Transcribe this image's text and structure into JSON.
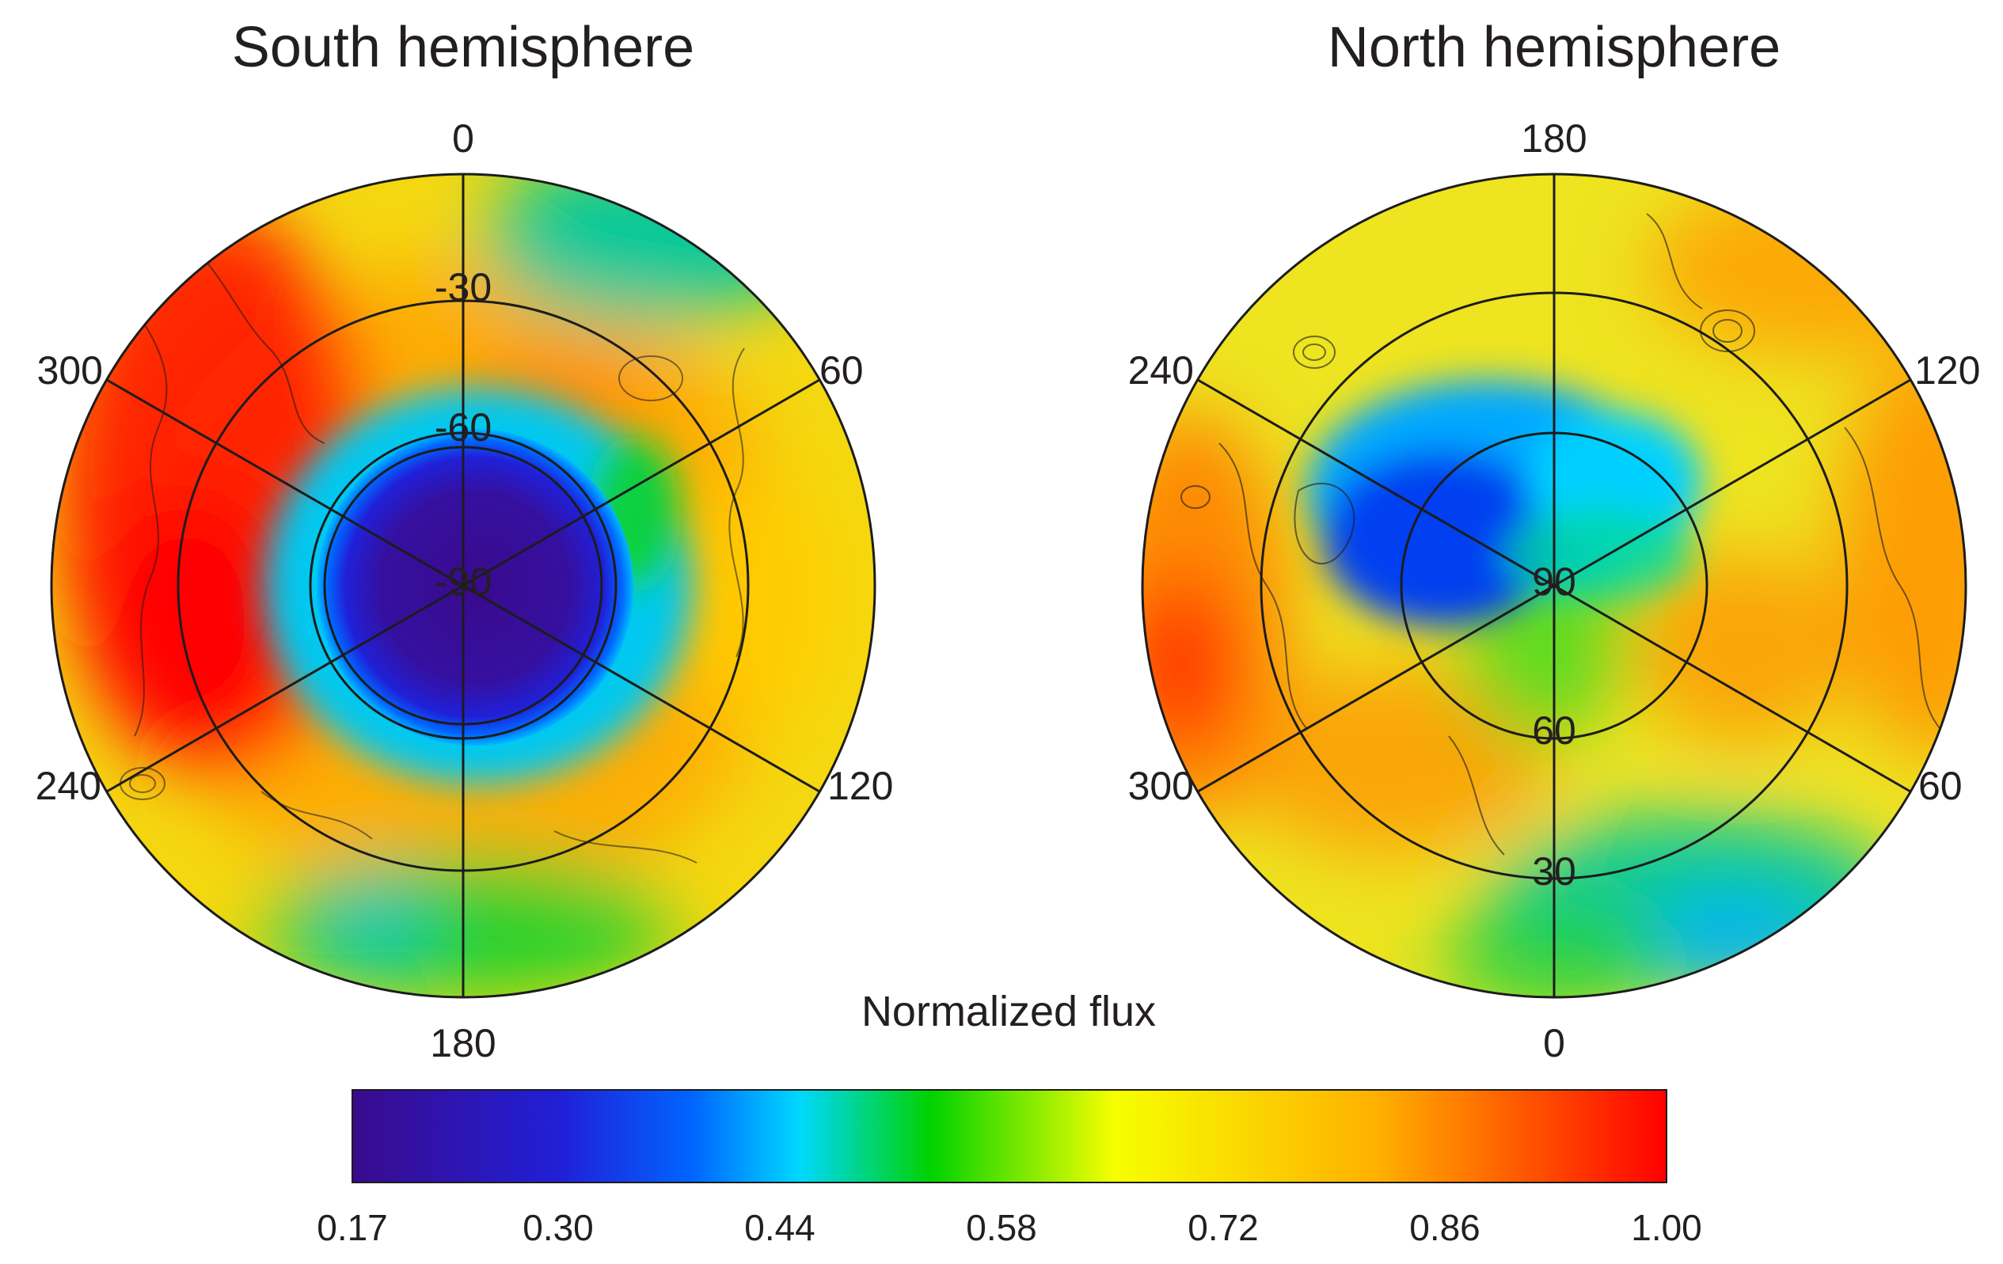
{
  "colors": {
    "scale": [
      "#3a0a8c",
      "#2020d8",
      "#0066ff",
      "#00d8ff",
      "#00d200",
      "#f6ff00",
      "#ffb000",
      "#ff0000"
    ],
    "grid": "#1c1c1c",
    "text": "#231f20"
  },
  "colorbar": {
    "title": "Normalized flux",
    "min": 0.17,
    "max": 1.0,
    "ticks": [
      "0.17",
      "0.30",
      "0.44",
      "0.58",
      "0.72",
      "0.86",
      "1.00"
    ]
  },
  "maps": [
    {
      "id": "south",
      "title": "South hemisphere",
      "projection": "polar stereographic, south pole centered",
      "meridians": [
        0,
        60,
        120,
        180,
        240,
        300
      ],
      "lon_labels": [
        "0",
        "60",
        "120",
        "180",
        "240",
        "300"
      ],
      "lat_circles": [
        -30,
        -60,
        -80
      ],
      "lat_labels": [
        "-30",
        "-60",
        "-90"
      ]
    },
    {
      "id": "north",
      "title": "North hemisphere",
      "projection": "polar stereographic, north pole centered",
      "meridians": [
        180,
        120,
        60,
        0,
        300,
        240
      ],
      "lon_labels": [
        "180",
        "120",
        "60",
        "0",
        "300",
        "240"
      ],
      "lat_circles": [
        30,
        60
      ],
      "lat_labels": [
        "30",
        "60",
        "90"
      ]
    }
  ]
}
